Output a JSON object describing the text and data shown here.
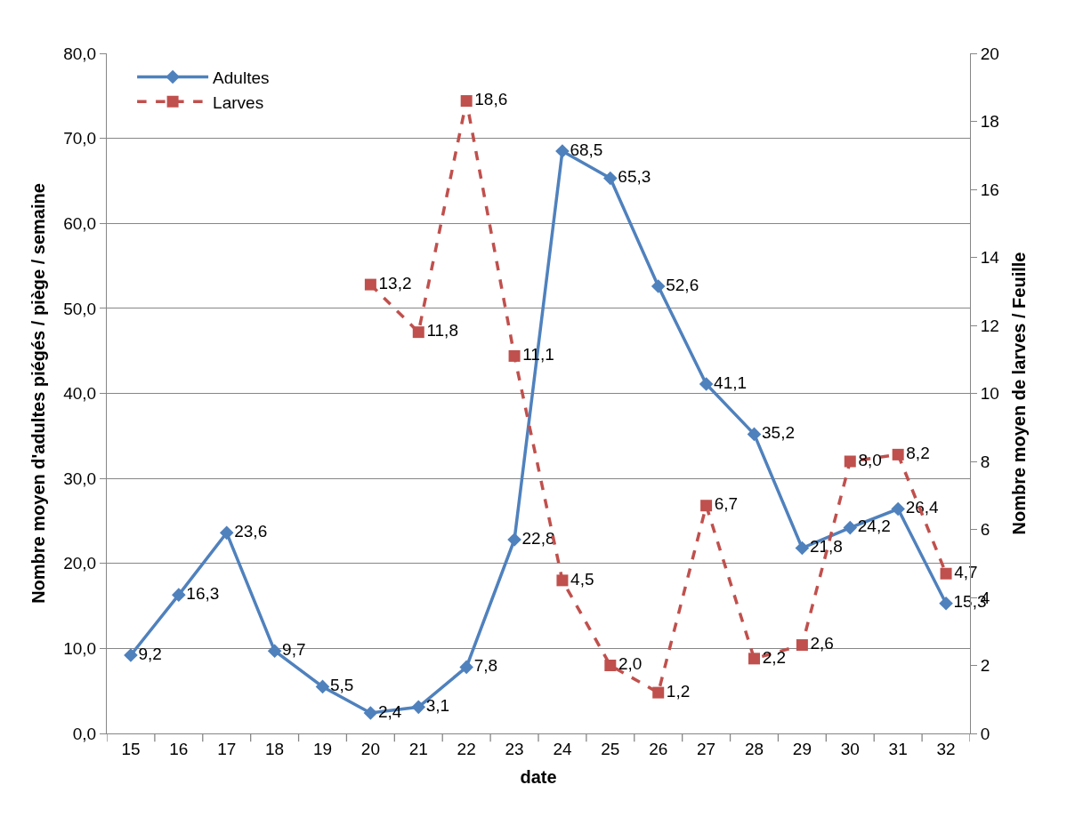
{
  "chart_data": {
    "type": "line",
    "categories": [
      "15",
      "16",
      "17",
      "18",
      "19",
      "20",
      "21",
      "22",
      "23",
      "24",
      "25",
      "26",
      "27",
      "28",
      "29",
      "30",
      "31",
      "32"
    ],
    "series": [
      {
        "name": "Adultes",
        "color": "#4f81bd",
        "marker": "diamond",
        "line_style": "solid",
        "values": [
          9.2,
          16.3,
          23.6,
          9.7,
          5.5,
          2.4,
          3.1,
          7.8,
          22.8,
          68.5,
          65.3,
          52.6,
          41.1,
          35.2,
          21.8,
          24.2,
          26.4,
          15.3
        ],
        "value_labels": [
          "9,2",
          "16,3",
          "23,6",
          "9,7",
          "5,5",
          "2,4",
          "3,1",
          "7,8",
          "22,8",
          "68,5",
          "65,3",
          "52,6",
          "41,1",
          "35,2",
          "21,8",
          "24,2",
          "26,4",
          "15,3"
        ]
      },
      {
        "name": "Larves",
        "color": "#c0504d",
        "marker": "square",
        "line_style": "dashed",
        "axis": "y2",
        "values": [
          null,
          null,
          null,
          null,
          null,
          13.2,
          11.8,
          18.6,
          11.1,
          4.5,
          2.0,
          1.2,
          6.7,
          2.2,
          2.6,
          8.0,
          8.2,
          4.7
        ],
        "value_labels": [
          null,
          null,
          null,
          null,
          null,
          "13,2",
          "11,8",
          "18,6",
          "11,1",
          "4,5",
          "2,0",
          "1,2",
          "6,7",
          "2,2",
          "2,6",
          "8,0",
          "8,2",
          "4,7"
        ]
      }
    ],
    "xlabel": "date",
    "ylabel": "Nombre moyen d'adultes piégés / piège / semaine",
    "y2label": "Nombre moyen de larves / Feuille",
    "ylim": [
      0,
      80
    ],
    "yticks": [
      {
        "value": 0,
        "label": "0,0"
      },
      {
        "value": 10,
        "label": "10,0"
      },
      {
        "value": 20,
        "label": "20,0"
      },
      {
        "value": 30,
        "label": "30,0"
      },
      {
        "value": 40,
        "label": "40,0"
      },
      {
        "value": 50,
        "label": "50,0"
      },
      {
        "value": 60,
        "label": "60,0"
      },
      {
        "value": 70,
        "label": "70,0"
      },
      {
        "value": 80,
        "label": "80,0"
      }
    ],
    "y2lim": [
      0,
      20
    ],
    "y2ticks": [
      0,
      2,
      4,
      6,
      8,
      10,
      12,
      14,
      16,
      18,
      20
    ],
    "grid": "y",
    "legend": "top left"
  }
}
